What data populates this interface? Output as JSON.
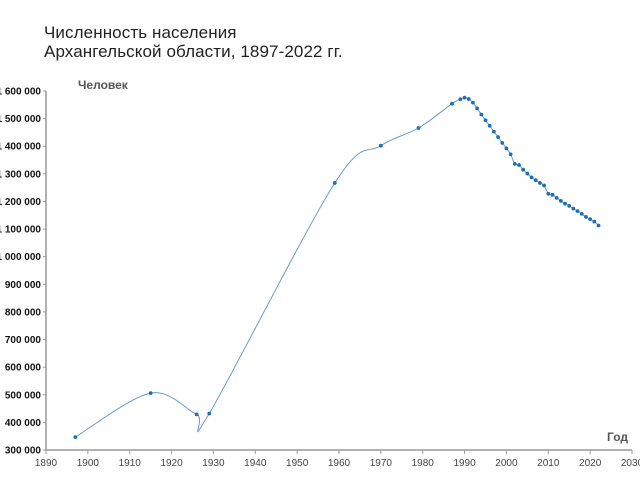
{
  "title": {
    "line1": "Численность населения",
    "line2": "Архангельской области, 1897-2022 гг."
  },
  "axes": {
    "y_title": "Человек",
    "x_title": "Год",
    "y_ticks": [
      "300 000",
      "400 000",
      "500 000",
      "600 000",
      "700 000",
      "800 000",
      "900 000",
      "1 000 000",
      "1 100 000",
      "1 200 000",
      "1 300 000",
      "1 400 000",
      "1 500 000",
      "1 600 000"
    ],
    "x_ticks": [
      "1890",
      "1900",
      "1910",
      "1920",
      "1930",
      "1940",
      "1950",
      "1960",
      "1970",
      "1980",
      "1990",
      "2000",
      "2010",
      "2020",
      "2030"
    ]
  },
  "colors": {
    "line": "#6a9ccc",
    "marker": "#1f6fb5",
    "axis": "#999999"
  },
  "chart_data": {
    "type": "line",
    "title": "Численность населения Архангельской области, 1897-2022 гг.",
    "xlabel": "Год",
    "ylabel": "Человек",
    "xlim": [
      1890,
      2030
    ],
    "ylim": [
      300000,
      1600000
    ],
    "grid": false,
    "legend": null,
    "series": [
      {
        "name": "Численность населения",
        "x": [
          1897,
          1915,
          1926,
          1929,
          1959,
          1970,
          1979,
          1987,
          1989,
          1990,
          1991,
          1992,
          1993,
          1994,
          1995,
          1996,
          1997,
          1998,
          1999,
          2000,
          2001,
          2002,
          2003,
          2004,
          2005,
          2006,
          2007,
          2008,
          2009,
          2010,
          2011,
          2012,
          2013,
          2014,
          2015,
          2016,
          2017,
          2018,
          2019,
          2020,
          2021,
          2022
        ],
        "values": [
          346536,
          506000,
          429000,
          432000,
          1267000,
          1402000,
          1466000,
          1554000,
          1570000,
          1576000,
          1571000,
          1558000,
          1537000,
          1515000,
          1494000,
          1474000,
          1453000,
          1433000,
          1412000,
          1392000,
          1371000,
          1336000,
          1332000,
          1315000,
          1301000,
          1287000,
          1277000,
          1267000,
          1258000,
          1228000,
          1224000,
          1213000,
          1202000,
          1192000,
          1184000,
          1174000,
          1165000,
          1155000,
          1144000,
          1136000,
          1127000,
          1113000
        ]
      }
    ]
  }
}
